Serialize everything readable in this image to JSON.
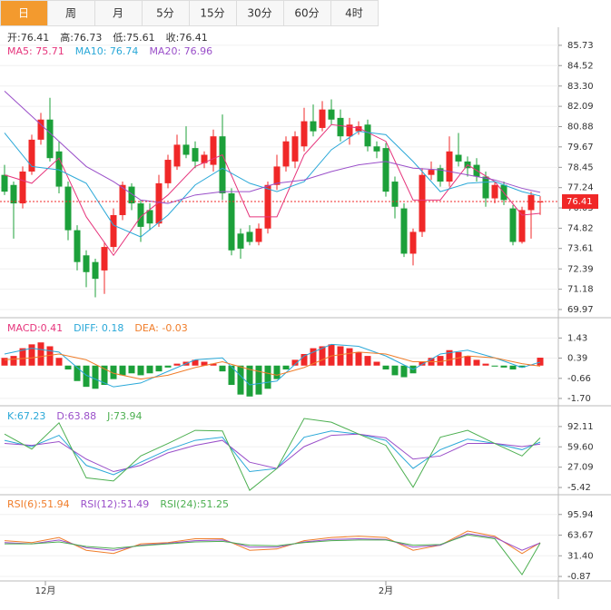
{
  "tabs": [
    "日",
    "周",
    "月",
    "5分",
    "15分",
    "30分",
    "60分",
    "4时"
  ],
  "chart_data": {
    "type": "candlestick",
    "up_color": "#f02828",
    "down_color": "#1ca03a",
    "xlabels": [
      {
        "value": 4.5,
        "label": "12月"
      },
      {
        "value": 42,
        "label": "2月"
      }
    ],
    "price_legend": [
      "开:76.41",
      "高:76.73",
      "低:75.61",
      "收:76.41"
    ],
    "current_price": 76.41,
    "ylim": [
      69.48,
      86.7
    ],
    "yticks": [
      85.73,
      84.52,
      {
        "value": 83.3,
        "label": "83.30"
      },
      82.09,
      80.88,
      79.67,
      78.45,
      77.24,
      76.03,
      74.82,
      73.61,
      72.39,
      71.18,
      69.97
    ],
    "open": [
      78.0,
      77.4,
      76.3,
      78.2,
      80.1,
      81.3,
      79.4,
      77.3,
      74.7,
      73.2,
      72.8,
      72.3,
      73.7,
      75.6,
      77.3,
      76.3,
      75.9,
      75.1,
      77.5,
      78.5,
      79.8,
      79.6,
      78.7,
      78.6,
      80.3,
      76.9,
      74.5,
      74.6,
      74.0,
      74.8,
      77.4,
      78.5,
      78.8,
      79.7,
      81.2,
      80.8,
      81.9,
      81.4,
      80.3,
      80.6,
      81.0,
      79.7,
      79.6,
      77.6,
      76.0,
      73.3,
      74.6,
      78.0,
      78.4,
      77.6,
      79.2,
      78.8,
      78.6,
      77.9,
      76.6,
      77.4,
      76.0,
      74.0,
      75.9,
      76.41
    ],
    "high": [
      78.6,
      77.6,
      78.5,
      80.4,
      81.7,
      82.6,
      80.0,
      77.6,
      75.0,
      73.5,
      73.0,
      74.0,
      76.0,
      77.6,
      77.5,
      76.5,
      76.3,
      78.0,
      79.2,
      80.4,
      80.9,
      80.0,
      79.4,
      80.7,
      81.6,
      77.2,
      74.8,
      75.0,
      75.1,
      77.6,
      79.2,
      80.3,
      80.6,
      82.0,
      82.2,
      82.4,
      82.5,
      81.9,
      81.4,
      81.2,
      81.3,
      80.0,
      79.9,
      77.9,
      76.3,
      74.8,
      78.4,
      78.8,
      78.6,
      80.3,
      80.5,
      79.1,
      79.0,
      78.2,
      77.6,
      77.6,
      76.2,
      76.1,
      77.0,
      76.73
    ],
    "low": [
      76.8,
      74.2,
      76.0,
      78.0,
      79.8,
      78.8,
      76.9,
      74.1,
      72.3,
      71.3,
      70.7,
      70.9,
      73.4,
      75.3,
      75.9,
      74.0,
      74.7,
      74.9,
      77.2,
      78.3,
      79.0,
      78.4,
      78.4,
      78.2,
      76.5,
      73.2,
      73.0,
      73.8,
      73.8,
      74.5,
      77.1,
      78.2,
      78.4,
      79.4,
      80.3,
      80.6,
      81.0,
      80.0,
      79.8,
      80.4,
      79.4,
      79.0,
      76.7,
      75.4,
      73.1,
      72.6,
      74.3,
      77.7,
      77.3,
      77.3,
      78.5,
      77.9,
      77.6,
      76.1,
      76.3,
      76.2,
      73.8,
      73.9,
      74.2,
      75.61
    ],
    "close": [
      77.0,
      76.3,
      78.2,
      80.1,
      81.3,
      79.0,
      77.3,
      74.7,
      72.8,
      72.2,
      71.8,
      73.7,
      75.6,
      77.4,
      76.3,
      74.9,
      75.1,
      77.5,
      78.9,
      79.8,
      79.2,
      78.8,
      79.2,
      80.3,
      76.9,
      73.5,
      73.6,
      74.0,
      74.8,
      77.4,
      78.5,
      80.0,
      80.3,
      81.2,
      80.6,
      81.9,
      81.3,
      80.3,
      81.0,
      80.9,
      79.7,
      79.4,
      77.0,
      76.1,
      73.3,
      74.6,
      78.0,
      78.3,
      77.6,
      79.4,
      78.8,
      78.4,
      77.9,
      76.6,
      77.4,
      76.5,
      74.0,
      75.9,
      76.8,
      76.41
    ],
    "line_x": [
      0,
      3,
      6,
      9,
      12,
      15,
      18,
      21,
      24,
      27,
      30,
      33,
      36,
      39,
      42,
      45,
      48,
      51,
      54,
      57,
      59
    ],
    "ma": [
      {
        "legend": "MA5: 75.71",
        "color": "#e6357c",
        "values": [
          78.0,
          77.5,
          79.0,
          75.5,
          73.2,
          75.5,
          76.8,
          78.5,
          79.2,
          75.5,
          75.5,
          79.2,
          81.0,
          80.8,
          80.0,
          76.5,
          76.5,
          78.6,
          77.6,
          75.6,
          75.71
        ]
      },
      {
        "legend": "MA10: 76.74",
        "color": "#2aa8d8",
        "values": [
          80.5,
          78.5,
          78.3,
          77.5,
          75.0,
          74.3,
          75.6,
          77.4,
          78.4,
          77.5,
          77.0,
          77.6,
          79.5,
          80.6,
          80.4,
          78.8,
          77.0,
          77.5,
          77.6,
          77.0,
          76.74
        ]
      },
      {
        "legend": "MA20: 76.96",
        "color": "#9a4fc9",
        "values": [
          83.0,
          81.5,
          80.0,
          78.5,
          77.6,
          76.5,
          76.3,
          76.8,
          77.0,
          77.0,
          77.5,
          77.7,
          78.2,
          78.6,
          78.8,
          78.4,
          78.3,
          78.0,
          77.7,
          77.2,
          76.96
        ]
      }
    ],
    "macd": {
      "ylim": [
        -2.08,
        2.48
      ],
      "yticks": [
        1.43,
        0.39,
        -0.66,
        {
          "value": -1.7,
          "label": "-1.70"
        }
      ],
      "legend": "MACD:0.41",
      "legend_color": "#e6357c",
      "histogram": [
        0.4,
        0.5,
        0.9,
        1.1,
        1.2,
        1.0,
        0.4,
        -0.2,
        -0.8,
        -1.1,
        -1.2,
        -1.0,
        -0.7,
        -0.5,
        -0.4,
        -0.5,
        -0.4,
        -0.3,
        -0.1,
        0.1,
        0.2,
        0.3,
        0.2,
        0.1,
        -0.3,
        -1.0,
        -1.5,
        -1.6,
        -1.5,
        -1.2,
        -0.7,
        -0.2,
        0.3,
        0.6,
        0.9,
        1.0,
        1.1,
        1.0,
        0.9,
        0.7,
        0.5,
        0.2,
        -0.2,
        -0.5,
        -0.6,
        -0.4,
        0.2,
        0.4,
        0.5,
        0.8,
        0.7,
        0.5,
        0.3,
        0.1,
        -0.05,
        -0.1,
        -0.2,
        -0.1,
        0.05,
        0.41
      ],
      "series": [
        {
          "legend": "DIFF: 0.18",
          "color": "#2aa8d8",
          "values": [
            0.6,
            0.9,
            0.7,
            -0.5,
            -1.1,
            -0.9,
            -0.3,
            0.3,
            0.4,
            -1.0,
            -0.8,
            0.5,
            1.1,
            1.0,
            0.5,
            -0.2,
            0.6,
            0.8,
            0.4,
            -0.1,
            0.18
          ]
        },
        {
          "legend": "DEA: -0.03",
          "color": "#f07d2a",
          "values": [
            0.3,
            0.4,
            0.6,
            0.3,
            -0.4,
            -0.7,
            -0.5,
            -0.1,
            0.2,
            -0.2,
            -0.5,
            -0.1,
            0.5,
            0.7,
            0.6,
            0.2,
            0.2,
            0.5,
            0.4,
            0.1,
            -0.03
          ]
        }
      ]
    },
    "kdj": {
      "ylim": [
        -16.98,
        125.3
      ],
      "yticks": [
        92.11,
        {
          "value": 59.6,
          "label": "59.60"
        },
        27.09,
        -5.42
      ],
      "series": [
        {
          "legend": "K:67.23",
          "color": "#2aa8d8",
          "values": [
            70,
            60,
            78,
            30,
            15,
            35,
            55,
            70,
            75,
            20,
            25,
            75,
            85,
            80,
            70,
            25,
            55,
            72,
            65,
            55,
            67.23
          ]
        },
        {
          "legend": "D:63.88",
          "color": "#9a4fc9",
          "values": [
            65,
            62,
            68,
            40,
            20,
            30,
            50,
            62,
            70,
            35,
            25,
            60,
            78,
            80,
            74,
            40,
            45,
            65,
            65,
            60,
            63.88
          ]
        },
        {
          "legend": "J:73.94",
          "color": "#4caf50",
          "values": [
            80,
            56,
            98,
            10,
            5,
            45,
            65,
            86,
            85,
            -10,
            25,
            105,
            99,
            80,
            62,
            -5,
            75,
            86,
            65,
            45,
            73.94
          ]
        }
      ]
    },
    "rsi": {
      "ylim": [
        -7.9,
        126.8
      ],
      "yticks": [
        95.94,
        63.67,
        {
          "value": 31.4,
          "label": "31.40"
        },
        -0.87
      ],
      "series": [
        {
          "legend": "RSI(6):51.94",
          "color": "#f07d2a",
          "values": [
            55,
            52,
            60,
            40,
            35,
            50,
            52,
            58,
            58,
            40,
            42,
            55,
            60,
            62,
            60,
            40,
            48,
            70,
            62,
            35,
            51.94
          ]
        },
        {
          "legend": "RSI(12):51.49",
          "color": "#9a4fc9",
          "values": [
            52,
            50,
            56,
            44,
            40,
            48,
            51,
            55,
            56,
            45,
            45,
            53,
            57,
            58,
            57,
            45,
            48,
            66,
            60,
            40,
            51.49
          ]
        },
        {
          "legend": "RSI(24):51.25",
          "color": "#4caf50",
          "values": [
            50,
            50,
            53,
            46,
            43,
            47,
            50,
            53,
            54,
            48,
            47,
            52,
            55,
            56,
            56,
            48,
            49,
            64,
            58,
            2,
            51.25
          ]
        }
      ]
    }
  }
}
